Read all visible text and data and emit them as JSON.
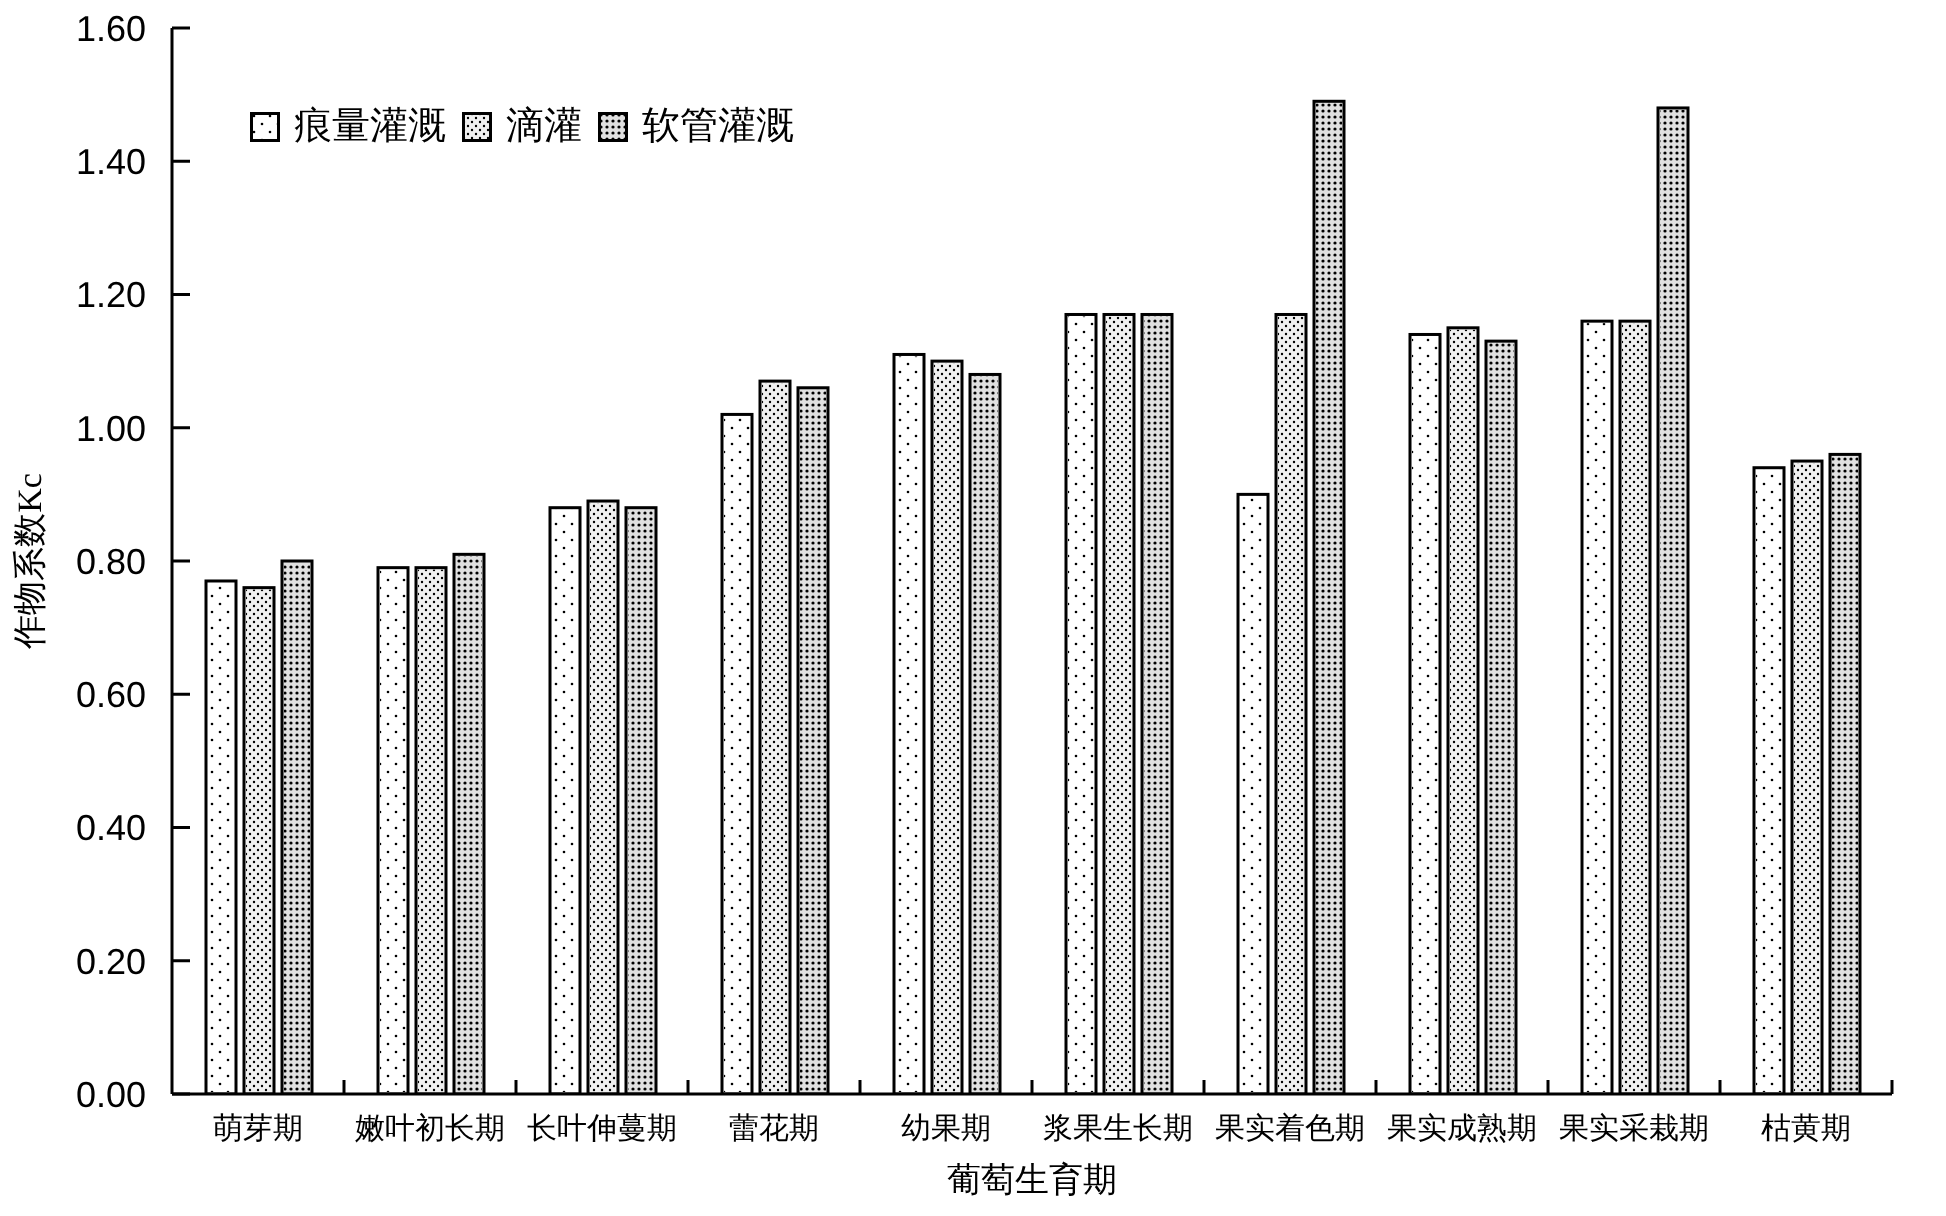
{
  "chart_data": {
    "type": "bar",
    "xlabel": "葡萄生育期",
    "ylabel": "作物系数Kc",
    "categories": [
      "萌芽期",
      "嫩叶初长期",
      "长叶伸蔓期",
      "蕾花期",
      "幼果期",
      "浆果生长期",
      "果实着色期",
      "果实成熟期",
      "果实采栽期",
      "枯黄期"
    ],
    "series": [
      {
        "name": "痕量灌溉",
        "color": "#ffffff",
        "values": [
          0.77,
          0.79,
          0.88,
          1.02,
          1.11,
          1.17,
          0.9,
          1.14,
          1.16,
          0.94
        ]
      },
      {
        "name": "滴灌",
        "color": "#f0f0f0",
        "values": [
          0.76,
          0.79,
          0.89,
          1.07,
          1.1,
          1.17,
          1.17,
          1.15,
          1.16,
          0.95
        ]
      },
      {
        "name": "软管灌溉",
        "color": "#e0e0e0",
        "values": [
          0.8,
          0.81,
          0.88,
          1.06,
          1.08,
          1.17,
          1.49,
          1.13,
          1.48,
          0.96
        ]
      }
    ],
    "ylim": [
      0,
      1.6
    ],
    "yticks": [
      {
        "value": 0,
        "label": "0.00"
      },
      {
        "value": 0.2,
        "label": "0.20"
      },
      {
        "value": 0.4,
        "label": "0.40"
      },
      {
        "value": 0.6,
        "label": "0.60"
      },
      {
        "value": 0.8,
        "label": "0.80"
      },
      {
        "value": 1.0,
        "label": "1.00"
      },
      {
        "value": 1.2,
        "label": "1.20"
      },
      {
        "value": 1.4,
        "label": "1.40"
      },
      {
        "value": 1.6,
        "label": "1.60"
      }
    ],
    "legend": "top left"
  }
}
